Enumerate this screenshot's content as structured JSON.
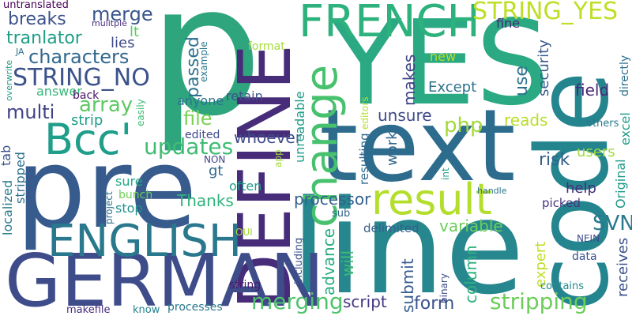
{
  "words": [
    {
      "text": "p",
      "color": "#2fa57e"
    },
    {
      "text": "YES",
      "color": "#2aa982"
    },
    {
      "text": "line",
      "color": "#27878e"
    },
    {
      "text": "code",
      "color": "#25858e"
    },
    {
      "text": "pre",
      "color": "#365b8c"
    },
    {
      "text": "text",
      "color": "#2e6c8e"
    },
    {
      "text": "DEFINE",
      "color": "#472c7a"
    },
    {
      "text": "GERMAN",
      "color": "#3e4c8a"
    },
    {
      "text": "FRENCH",
      "color": "#2db27d"
    },
    {
      "text": "change",
      "color": "#48c16e"
    },
    {
      "text": "result",
      "color": "#b4de2c"
    },
    {
      "text": "ENGLISH",
      "color": "#2a788e"
    },
    {
      "text": "Bcc'",
      "color": "#1f9e89"
    },
    {
      "text": "STRING_YES",
      "color": "#bddf26"
    },
    {
      "text": "STRING_NO",
      "color": "#3b528b"
    },
    {
      "text": "updates",
      "color": "#3fbc73"
    },
    {
      "text": "merging",
      "color": "#4ec36b"
    },
    {
      "text": "stripping",
      "color": "#6ccd5a"
    },
    {
      "text": "characters",
      "color": "#31688e"
    },
    {
      "text": "array",
      "color": "#5ec962"
    },
    {
      "text": "multi",
      "color": "#414487"
    },
    {
      "text": "breaks",
      "color": "#3b528b"
    },
    {
      "text": "tranlator",
      "color": "#1f9e89"
    },
    {
      "text": "merge",
      "color": "#39568c"
    },
    {
      "text": "file",
      "color": "#7ad151"
    },
    {
      "text": "php",
      "color": "#a2da37"
    },
    {
      "text": "SVN",
      "color": "#2a788e"
    },
    {
      "text": "passed",
      "color": "#2c728e"
    },
    {
      "text": "processor",
      "color": "#35608d"
    },
    {
      "text": "whoever",
      "color": "#3e4a89"
    },
    {
      "text": "Thanks",
      "color": "#2fb47c"
    },
    {
      "text": "form",
      "color": "#3b528b"
    },
    {
      "text": "script",
      "color": "#453781"
    },
    {
      "text": "submit",
      "color": "#365c8d"
    },
    {
      "text": "column",
      "color": "#2db27d"
    },
    {
      "text": "variable",
      "color": "#6ccd5a"
    },
    {
      "text": "will",
      "color": "#3fbc73"
    },
    {
      "text": "advance",
      "color": "#25ac82"
    },
    {
      "text": "works",
      "color": "#31688e"
    },
    {
      "text": "unsure",
      "color": "#3e4989"
    },
    {
      "text": "makes",
      "color": "#414487"
    },
    {
      "text": "Except",
      "color": "#2c728e"
    },
    {
      "text": "use",
      "color": "#2c728e"
    },
    {
      "text": "security",
      "color": "#38598c"
    },
    {
      "text": "field",
      "color": "#482677"
    },
    {
      "text": "reads",
      "color": "#b8de29"
    },
    {
      "text": "risk",
      "color": "#355f8d"
    },
    {
      "text": "help",
      "color": "#472d7b"
    },
    {
      "text": "users",
      "color": "#a0da39"
    },
    {
      "text": "expert",
      "color": "#bddf26"
    },
    {
      "text": "receives",
      "color": "#3b528b"
    },
    {
      "text": "Original",
      "color": "#1f9a8a"
    },
    {
      "text": "excel",
      "color": "#1e9c89"
    },
    {
      "text": "directly",
      "color": "#2c728e"
    },
    {
      "text": "others",
      "color": "#2a788e"
    },
    {
      "text": "contains",
      "color": "#23898e"
    },
    {
      "text": "data",
      "color": "#3b528b"
    },
    {
      "text": "NEIN",
      "color": "#3e4c8a"
    },
    {
      "text": "picked",
      "color": "#46337e"
    },
    {
      "text": "handle",
      "color": "#2c728e"
    },
    {
      "text": "binary",
      "color": "#3e4989"
    },
    {
      "text": "int",
      "color": "#1f9e89"
    },
    {
      "text": "sub",
      "color": "#33638d"
    },
    {
      "text": "delimited",
      "color": "#355f8d"
    },
    {
      "text": "string",
      "color": "#481b6d"
    },
    {
      "text": "including",
      "color": "#3b528b"
    },
    {
      "text": "processes",
      "color": "#2a778e"
    },
    {
      "text": "know",
      "color": "#26828e"
    },
    {
      "text": "makefile",
      "color": "#472d7b"
    },
    {
      "text": "OUI",
      "color": "#a8db34"
    },
    {
      "text": "gt",
      "color": "#31688e"
    },
    {
      "text": "NON",
      "color": "#414487"
    },
    {
      "text": "app",
      "color": "#a2da37"
    },
    {
      "text": "project",
      "color": "#2c728e"
    },
    {
      "text": "bunch",
      "color": "#6ece58"
    },
    {
      "text": "stop",
      "color": "#21918c"
    },
    {
      "text": "sure",
      "color": "#22a884"
    },
    {
      "text": "often",
      "color": "#1f9a8a"
    },
    {
      "text": "edited",
      "color": "#3e4989"
    },
    {
      "text": "retain",
      "color": "#3b528b"
    },
    {
      "text": "anyone",
      "color": "#2c728e"
    },
    {
      "text": "unreadable",
      "color": "#1f9e89"
    },
    {
      "text": "resulting",
      "color": "#31688e"
    },
    {
      "text": "editors",
      "color": "#b5de2b"
    },
    {
      "text": "new",
      "color": "#b5de2b"
    },
    {
      "text": "fine",
      "color": "#482878"
    },
    {
      "text": "format",
      "color": "#a5db36"
    },
    {
      "text": "lies",
      "color": "#3e4989"
    },
    {
      "text": "lt",
      "color": "#5ec962"
    },
    {
      "text": "example",
      "color": "#2a788e"
    },
    {
      "text": "mulitple",
      "color": "#472a7a"
    },
    {
      "text": "untranslated",
      "color": "#440154"
    },
    {
      "text": "JA",
      "color": "#2c728e"
    },
    {
      "text": "overwrite",
      "color": "#1f9e89"
    },
    {
      "text": "answer",
      "color": "#35b779"
    },
    {
      "text": "back",
      "color": "#471365"
    },
    {
      "text": "easily",
      "color": "#3fbc73"
    },
    {
      "text": "strip",
      "color": "#1f9e89"
    },
    {
      "text": "tab",
      "color": "#3b528b"
    },
    {
      "text": "localized",
      "color": "#287c8e"
    },
    {
      "text": "stripped",
      "color": "#2c728e"
    }
  ]
}
